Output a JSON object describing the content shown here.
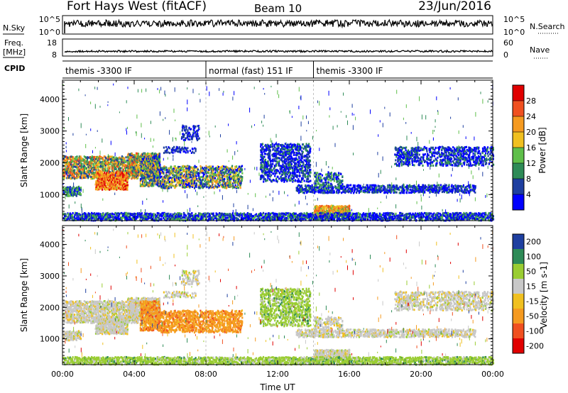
{
  "header": {
    "title": "Fort Hays West (fitACF)",
    "beam": "Beam 10",
    "date": "23/Jun/2016"
  },
  "colors": {
    "power_scale": [
      "#0000ff",
      "#1e3fa0",
      "#2e8b57",
      "#5fbf4a",
      "#f0c020",
      "#f59a20",
      "#f05020",
      "#e00000"
    ],
    "velocity_scale": [
      "#e00000",
      "#f05020",
      "#f59a20",
      "#f0c020",
      "#c8c8c8",
      "#9acd32",
      "#2e8b57",
      "#1e3fa0"
    ],
    "noise_trace": "#000000"
  },
  "chart_data": [
    {
      "type": "line",
      "name": "noise-panel",
      "left_label": "N.Sky",
      "right_label": "N.Search",
      "left_ticks": [
        "10^5",
        "10^0"
      ],
      "right_ticks": [
        "10^5",
        "10^0"
      ]
    },
    {
      "type": "line",
      "name": "freq-panel",
      "left_label": "Freq.",
      "left_unit": "[MHz]",
      "right_label": "Nave",
      "left_ticks": [
        "18",
        "8"
      ],
      "right_ticks": [
        "60",
        "0"
      ]
    },
    {
      "type": "table",
      "name": "cpid-panel",
      "label": "CPID",
      "segments": [
        {
          "start": 0,
          "end": 8,
          "label": "themis -3300 IF"
        },
        {
          "start": 8,
          "end": 14,
          "label": "normal (fast) 151 IF"
        },
        {
          "start": 14,
          "end": 24,
          "label": "themis -3300 IF"
        }
      ]
    },
    {
      "type": "heatmap",
      "name": "power",
      "ylabel": "Slant Range [km]",
      "ylim": [
        180,
        4600
      ],
      "yticks": [
        "1000",
        "2000",
        "3000",
        "4000"
      ],
      "xlim": [
        0,
        24
      ],
      "colorbar_label": "Power [dB]",
      "colorbar_ticks": [
        "4",
        "8",
        "12",
        "16",
        "20",
        "24",
        "28"
      ],
      "colorbar_range": [
        0,
        30
      ]
    },
    {
      "type": "heatmap",
      "name": "velocity",
      "ylabel": "Slant Range [km]",
      "ylim": [
        180,
        4600
      ],
      "yticks": [
        "1000",
        "2000",
        "3000",
        "4000"
      ],
      "xlim": [
        0,
        24
      ],
      "xlabel": "Time UT",
      "xticks": [
        "00:00",
        "04:00",
        "08:00",
        "12:00",
        "16:00",
        "20:00",
        "00:00"
      ],
      "colorbar_label": "Velocity [m s-1]",
      "colorbar_ticks": [
        "-200",
        "-100",
        "-50",
        "-15",
        "15",
        "50",
        "100",
        "200"
      ]
    }
  ]
}
